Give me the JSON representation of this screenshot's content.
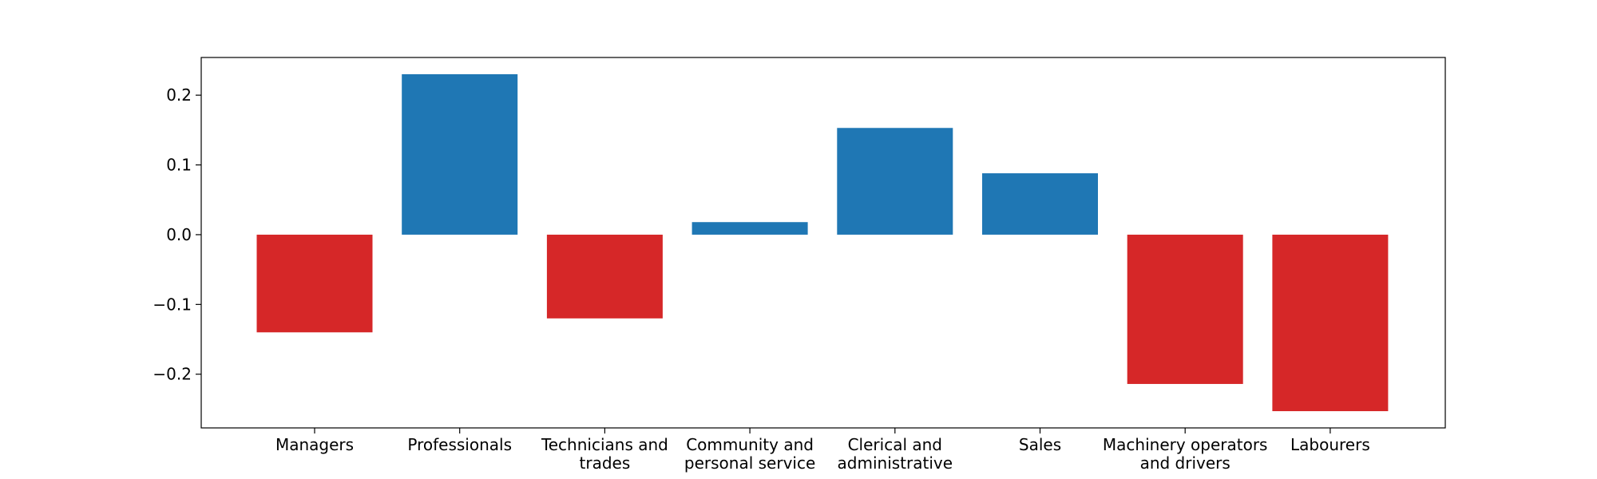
{
  "chart_data": {
    "type": "bar",
    "title": "",
    "xlabel": "",
    "ylabel": "",
    "categories": [
      [
        "Managers"
      ],
      [
        "Professionals"
      ],
      [
        "Technicians and",
        "trades"
      ],
      [
        "Community and",
        "personal service"
      ],
      [
        "Clerical and",
        "administrative"
      ],
      [
        "Sales"
      ],
      [
        "Machinery operators",
        "and drivers"
      ],
      [
        "Labourers"
      ]
    ],
    "values": [
      -0.14,
      0.23,
      -0.12,
      0.018,
      0.153,
      0.088,
      -0.214,
      -0.253
    ],
    "ylim": [
      -0.277,
      0.254
    ],
    "yticks": [
      0.2,
      0.1,
      0.0,
      -0.1,
      -0.2
    ],
    "ytick_labels": [
      "0.2",
      "0.1",
      "0.0",
      "−0.1",
      "−0.2"
    ],
    "colors": {
      "positive": "#1f77b4",
      "negative": "#d62728",
      "axis": "#000000"
    },
    "grid": false,
    "legend": "none"
  }
}
